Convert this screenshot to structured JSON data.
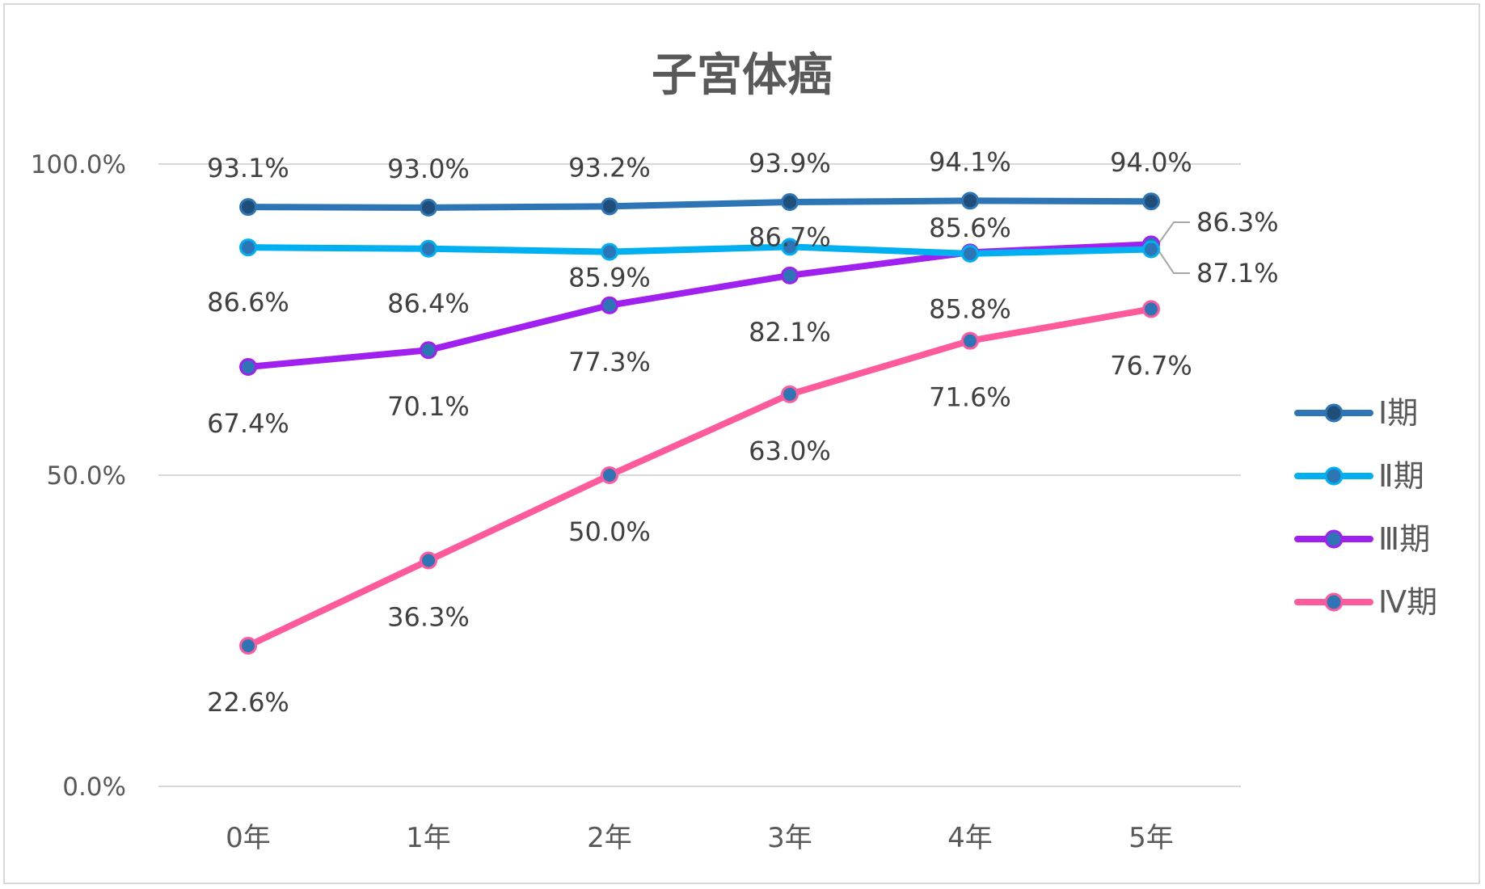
{
  "chart_data": {
    "type": "line",
    "title": "子宮体癌",
    "categories": [
      "0年",
      "1年",
      "2年",
      "3年",
      "4年",
      "5年"
    ],
    "y_tick_labels": [
      "100.0%",
      "50.0%",
      "0.0%"
    ],
    "ylim": [
      0,
      100
    ],
    "grid": true,
    "legend_position": "right",
    "series": [
      {
        "name": "Ⅰ期",
        "values": [
          93.1,
          93.0,
          93.2,
          93.9,
          94.1,
          94.0
        ],
        "labels": [
          "93.1%",
          "93.0%",
          "93.2%",
          "93.9%",
          "94.1%",
          "94.0%"
        ],
        "color": "#2e75b6",
        "marker_fill": "#1f4e79"
      },
      {
        "name": "Ⅱ期",
        "values": [
          86.6,
          86.4,
          85.9,
          86.7,
          85.6,
          86.3
        ],
        "labels": [
          "86.6%",
          "86.4%",
          "85.9%",
          "86.7%",
          "85.6%",
          "86.3%"
        ],
        "color": "#00b0f0",
        "marker_fill": "#2e75b6"
      },
      {
        "name": "Ⅲ期",
        "values": [
          67.4,
          70.1,
          77.3,
          82.1,
          85.8,
          87.1
        ],
        "labels": [
          "67.4%",
          "70.1%",
          "77.3%",
          "82.1%",
          "85.8%",
          "87.1%"
        ],
        "color": "#a020f0",
        "marker_fill": "#2e75b6"
      },
      {
        "name": "Ⅳ期",
        "values": [
          22.6,
          36.3,
          50.0,
          63.0,
          71.6,
          76.7
        ],
        "labels": [
          "22.6%",
          "36.3%",
          "50.0%",
          "63.0%",
          "71.6%",
          "76.7%"
        ],
        "color": "#ff5a9c",
        "marker_fill": "#2e75b6"
      }
    ]
  }
}
